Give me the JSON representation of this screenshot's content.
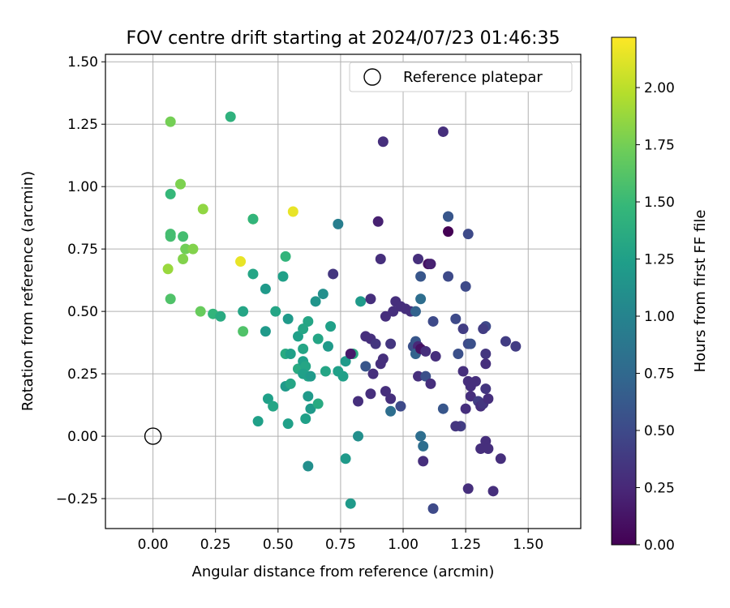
{
  "chart_data": {
    "type": "scatter",
    "title": "FOV centre drift starting at 2024/07/23 01:46:35",
    "xlabel": "Angular distance from reference (arcmin)",
    "ylabel": "Rotation from reference (arcmin)",
    "xlim": [
      -0.19,
      1.71
    ],
    "ylim": [
      -0.37,
      1.53
    ],
    "x_ticks": [
      "0.00",
      "0.25",
      "0.50",
      "0.75",
      "1.00",
      "1.25",
      "1.50"
    ],
    "y_ticks": [
      "−0.25",
      "0.00",
      "0.25",
      "0.50",
      "0.75",
      "1.00",
      "1.25",
      "1.50"
    ],
    "grid": true,
    "legend": {
      "position": "top-right",
      "entries": [
        "Reference platepar"
      ]
    },
    "reference_point": {
      "x": 0.0,
      "y": 0.0
    },
    "colorbar": {
      "label": "Hours from first FF file",
      "range": [
        0.0,
        2.22
      ],
      "colormap": "viridis",
      "tick_labels": [
        "0.00",
        "0.25",
        "0.50",
        "0.75",
        "1.00",
        "1.25",
        "1.50",
        "1.75",
        "2.00"
      ]
    },
    "points": [
      [
        0.07,
        1.26,
        1.75
      ],
      [
        0.31,
        1.28,
        1.42
      ],
      [
        0.11,
        1.01,
        1.78
      ],
      [
        0.07,
        0.97,
        1.48
      ],
      [
        0.2,
        0.91,
        1.85
      ],
      [
        0.07,
        0.81,
        1.55
      ],
      [
        0.07,
        0.8,
        1.55
      ],
      [
        0.12,
        0.8,
        1.55
      ],
      [
        0.13,
        0.75,
        1.74
      ],
      [
        0.16,
        0.75,
        1.8
      ],
      [
        0.12,
        0.71,
        1.8
      ],
      [
        0.06,
        0.67,
        1.88
      ],
      [
        0.07,
        0.55,
        1.6
      ],
      [
        0.19,
        0.5,
        1.7
      ],
      [
        0.24,
        0.49,
        1.45
      ],
      [
        0.27,
        0.48,
        1.35
      ],
      [
        0.36,
        0.42,
        1.6
      ],
      [
        0.4,
        0.87,
        2.04
      ],
      [
        0.4,
        0.87,
        1.45
      ],
      [
        0.56,
        0.9,
        2.15
      ],
      [
        0.35,
        0.7,
        2.15
      ],
      [
        0.4,
        0.65,
        1.3
      ],
      [
        0.36,
        0.5,
        1.3
      ],
      [
        0.45,
        0.59,
        1.2
      ],
      [
        0.53,
        0.72,
        1.45
      ],
      [
        0.52,
        0.64,
        1.25
      ],
      [
        0.49,
        0.5,
        1.3
      ],
      [
        0.45,
        0.42,
        1.2
      ],
      [
        0.54,
        0.47,
        1.2
      ],
      [
        0.58,
        0.4,
        1.25
      ],
      [
        0.62,
        0.46,
        1.3
      ],
      [
        0.6,
        0.43,
        1.3
      ],
      [
        0.6,
        0.35,
        1.3
      ],
      [
        0.53,
        0.33,
        1.35
      ],
      [
        0.55,
        0.33,
        1.25
      ],
      [
        0.58,
        0.27,
        1.35
      ],
      [
        0.6,
        0.3,
        1.25
      ],
      [
        0.61,
        0.28,
        1.3
      ],
      [
        0.62,
        0.24,
        1.3
      ],
      [
        0.6,
        0.25,
        1.25
      ],
      [
        0.63,
        0.24,
        1.2
      ],
      [
        0.65,
        0.54,
        1.15
      ],
      [
        0.66,
        0.39,
        1.3
      ],
      [
        0.68,
        0.57,
        1.1
      ],
      [
        0.7,
        0.36,
        1.2
      ],
      [
        0.71,
        0.44,
        1.25
      ],
      [
        0.69,
        0.26,
        1.3
      ],
      [
        0.74,
        0.26,
        1.25
      ],
      [
        0.76,
        0.24,
        1.25
      ],
      [
        0.77,
        0.3,
        1.2
      ],
      [
        0.74,
        0.85,
        0.95
      ],
      [
        0.72,
        0.65,
        0.35
      ],
      [
        0.8,
        0.33,
        1.35
      ],
      [
        0.79,
        0.33,
        0.15
      ],
      [
        0.83,
        0.54,
        1.2
      ],
      [
        0.46,
        0.15,
        1.25
      ],
      [
        0.48,
        0.12,
        1.3
      ],
      [
        0.42,
        0.06,
        1.25
      ],
      [
        0.53,
        0.2,
        1.2
      ],
      [
        0.55,
        0.21,
        1.3
      ],
      [
        0.54,
        0.05,
        1.25
      ],
      [
        0.61,
        0.07,
        1.25
      ],
      [
        0.63,
        0.11,
        1.2
      ],
      [
        0.62,
        0.16,
        1.2
      ],
      [
        0.66,
        0.13,
        1.35
      ],
      [
        0.62,
        -0.12,
        1.1
      ],
      [
        0.77,
        -0.09,
        1.2
      ],
      [
        0.82,
        0.0,
        1.1
      ],
      [
        0.79,
        -0.27,
        1.2
      ],
      [
        0.9,
        0.86,
        0.2
      ],
      [
        0.87,
        0.55,
        0.3
      ],
      [
        0.91,
        0.71,
        0.3
      ],
      [
        0.93,
        0.48,
        0.3
      ],
      [
        0.96,
        0.5,
        0.3
      ],
      [
        0.97,
        0.54,
        0.3
      ],
      [
        0.99,
        0.52,
        0.3
      ],
      [
        1.01,
        0.51,
        0.3
      ],
      [
        1.03,
        0.5,
        0.3
      ],
      [
        1.05,
        0.5,
        0.7
      ],
      [
        1.07,
        0.55,
        0.8
      ],
      [
        1.07,
        0.64,
        0.6
      ],
      [
        1.06,
        0.71,
        0.3
      ],
      [
        1.1,
        0.69,
        0.1
      ],
      [
        1.11,
        0.69,
        0.2
      ],
      [
        0.85,
        0.4,
        0.3
      ],
      [
        0.87,
        0.39,
        0.3
      ],
      [
        0.89,
        0.37,
        0.35
      ],
      [
        0.85,
        0.28,
        0.6
      ],
      [
        0.91,
        0.29,
        0.3
      ],
      [
        0.92,
        0.31,
        0.3
      ],
      [
        0.88,
        0.25,
        0.3
      ],
      [
        0.95,
        0.37,
        0.35
      ],
      [
        0.82,
        0.14,
        0.3
      ],
      [
        0.87,
        0.17,
        0.3
      ],
      [
        0.93,
        0.18,
        0.3
      ],
      [
        0.95,
        0.15,
        0.3
      ],
      [
        0.95,
        0.1,
        0.8
      ],
      [
        0.99,
        0.12,
        0.5
      ],
      [
        1.04,
        0.36,
        0.55
      ],
      [
        1.05,
        0.38,
        0.6
      ],
      [
        1.06,
        0.36,
        0.25
      ],
      [
        1.05,
        0.33,
        0.7
      ],
      [
        1.07,
        0.35,
        0.1
      ],
      [
        1.09,
        0.34,
        0.3
      ],
      [
        1.06,
        0.24,
        0.3
      ],
      [
        1.09,
        0.24,
        0.55
      ],
      [
        1.11,
        0.21,
        0.3
      ],
      [
        1.12,
        0.46,
        0.5
      ],
      [
        1.13,
        0.32,
        0.3
      ],
      [
        1.16,
        0.11,
        0.6
      ],
      [
        1.07,
        0.0,
        0.8
      ],
      [
        1.08,
        -0.04,
        0.8
      ],
      [
        1.08,
        -0.1,
        0.3
      ],
      [
        1.12,
        -0.29,
        0.5
      ],
      [
        0.92,
        1.18,
        0.3
      ],
      [
        1.16,
        1.22,
        0.3
      ],
      [
        1.18,
        0.88,
        0.65
      ],
      [
        1.18,
        0.88,
        0.6
      ],
      [
        1.18,
        0.82,
        0.0
      ],
      [
        1.26,
        0.81,
        0.5
      ],
      [
        1.18,
        0.64,
        0.5
      ],
      [
        1.25,
        0.6,
        0.5
      ],
      [
        1.21,
        0.47,
        0.5
      ],
      [
        1.24,
        0.43,
        0.4
      ],
      [
        1.26,
        0.37,
        0.5
      ],
      [
        1.27,
        0.37,
        0.55
      ],
      [
        1.22,
        0.33,
        0.55
      ],
      [
        1.24,
        0.26,
        0.3
      ],
      [
        1.26,
        0.22,
        0.3
      ],
      [
        1.27,
        0.2,
        0.3
      ],
      [
        1.29,
        0.22,
        0.3
      ],
      [
        1.23,
        0.04,
        0.4
      ],
      [
        1.21,
        0.04,
        0.35
      ],
      [
        1.25,
        0.11,
        0.3
      ],
      [
        1.27,
        0.16,
        0.3
      ],
      [
        1.3,
        0.14,
        0.4
      ],
      [
        1.31,
        0.12,
        0.3
      ],
      [
        1.32,
        0.13,
        0.35
      ],
      [
        1.33,
        0.44,
        0.5
      ],
      [
        1.32,
        0.43,
        0.4
      ],
      [
        1.33,
        0.33,
        0.35
      ],
      [
        1.33,
        0.29,
        0.3
      ],
      [
        1.33,
        0.19,
        0.35
      ],
      [
        1.34,
        0.15,
        0.3
      ],
      [
        1.41,
        0.38,
        0.4
      ],
      [
        1.45,
        0.36,
        0.4
      ],
      [
        1.31,
        -0.05,
        0.3
      ],
      [
        1.33,
        -0.02,
        0.3
      ],
      [
        1.34,
        -0.05,
        0.3
      ],
      [
        1.39,
        -0.09,
        0.3
      ],
      [
        1.26,
        -0.21,
        0.3
      ],
      [
        1.36,
        -0.22,
        0.3
      ]
    ]
  }
}
